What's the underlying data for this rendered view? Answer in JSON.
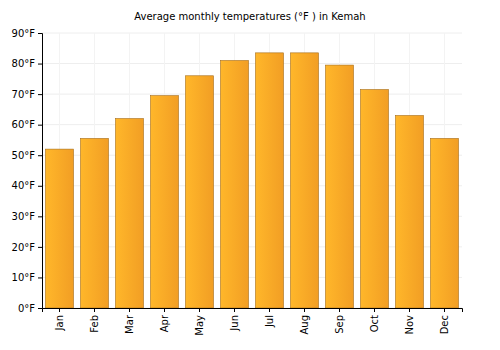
{
  "chart_data": {
    "type": "bar",
    "title": "Average monthly temperatures (°F ) in Kemah",
    "categories": [
      "Jan",
      "Feb",
      "Mar",
      "Apr",
      "May",
      "Jun",
      "Jul",
      "Aug",
      "Sep",
      "Oct",
      "Nov",
      "Dec"
    ],
    "values": [
      52,
      55.5,
      62,
      69.5,
      76,
      81,
      83.5,
      83.5,
      79.5,
      71.5,
      63,
      55.5
    ],
    "color": "#ffa726",
    "ylim": [
      0,
      90
    ],
    "yticks": [
      {
        "value": 0,
        "label": "0°F"
      },
      {
        "value": 10,
        "label": "10°F"
      },
      {
        "value": 20,
        "label": "20°F"
      },
      {
        "value": 30,
        "label": "30°F"
      },
      {
        "value": 40,
        "label": "40°F"
      },
      {
        "value": 50,
        "label": "50°F"
      },
      {
        "value": 60,
        "label": "60°F"
      },
      {
        "value": 70,
        "label": "70°F"
      },
      {
        "value": 80,
        "label": "80°F"
      },
      {
        "value": 90,
        "label": "90°F"
      }
    ],
    "grid": true
  }
}
